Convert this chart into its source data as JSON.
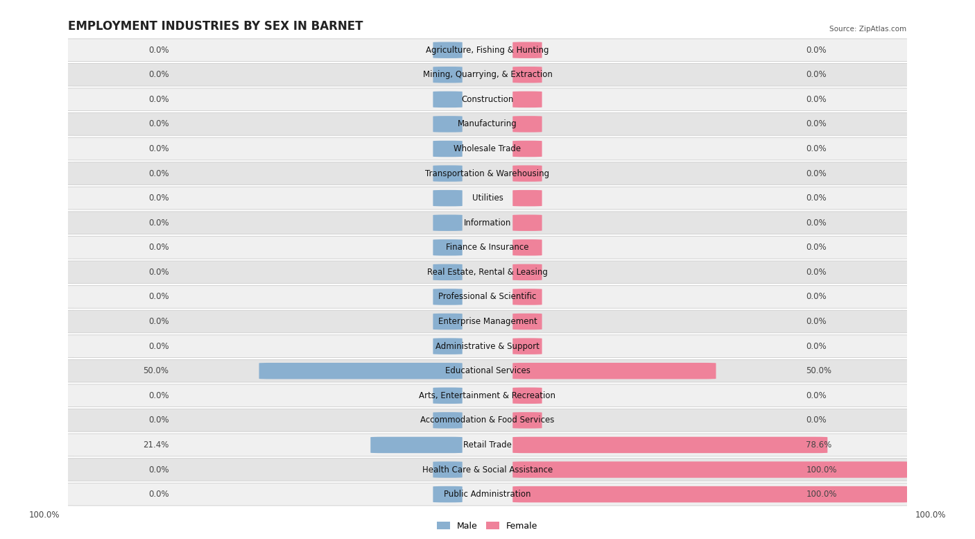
{
  "title": "EMPLOYMENT INDUSTRIES BY SEX IN BARNET",
  "source": "Source: ZipAtlas.com",
  "industries": [
    "Agriculture, Fishing & Hunting",
    "Mining, Quarrying, & Extraction",
    "Construction",
    "Manufacturing",
    "Wholesale Trade",
    "Transportation & Warehousing",
    "Utilities",
    "Information",
    "Finance & Insurance",
    "Real Estate, Rental & Leasing",
    "Professional & Scientific",
    "Enterprise Management",
    "Administrative & Support",
    "Educational Services",
    "Arts, Entertainment & Recreation",
    "Accommodation & Food Services",
    "Retail Trade",
    "Health Care & Social Assistance",
    "Public Administration"
  ],
  "male": [
    0.0,
    0.0,
    0.0,
    0.0,
    0.0,
    0.0,
    0.0,
    0.0,
    0.0,
    0.0,
    0.0,
    0.0,
    0.0,
    50.0,
    0.0,
    0.0,
    21.4,
    0.0,
    0.0
  ],
  "female": [
    0.0,
    0.0,
    0.0,
    0.0,
    0.0,
    0.0,
    0.0,
    0.0,
    0.0,
    0.0,
    0.0,
    0.0,
    0.0,
    50.0,
    0.0,
    0.0,
    78.6,
    100.0,
    100.0
  ],
  "male_color": "#8ab0d0",
  "female_color": "#ef829a",
  "male_label": "Male",
  "female_label": "Female",
  "row_bg_even": "#f0f0f0",
  "row_bg_odd": "#e4e4e4",
  "title_fontsize": 12,
  "label_fontsize": 8.5
}
